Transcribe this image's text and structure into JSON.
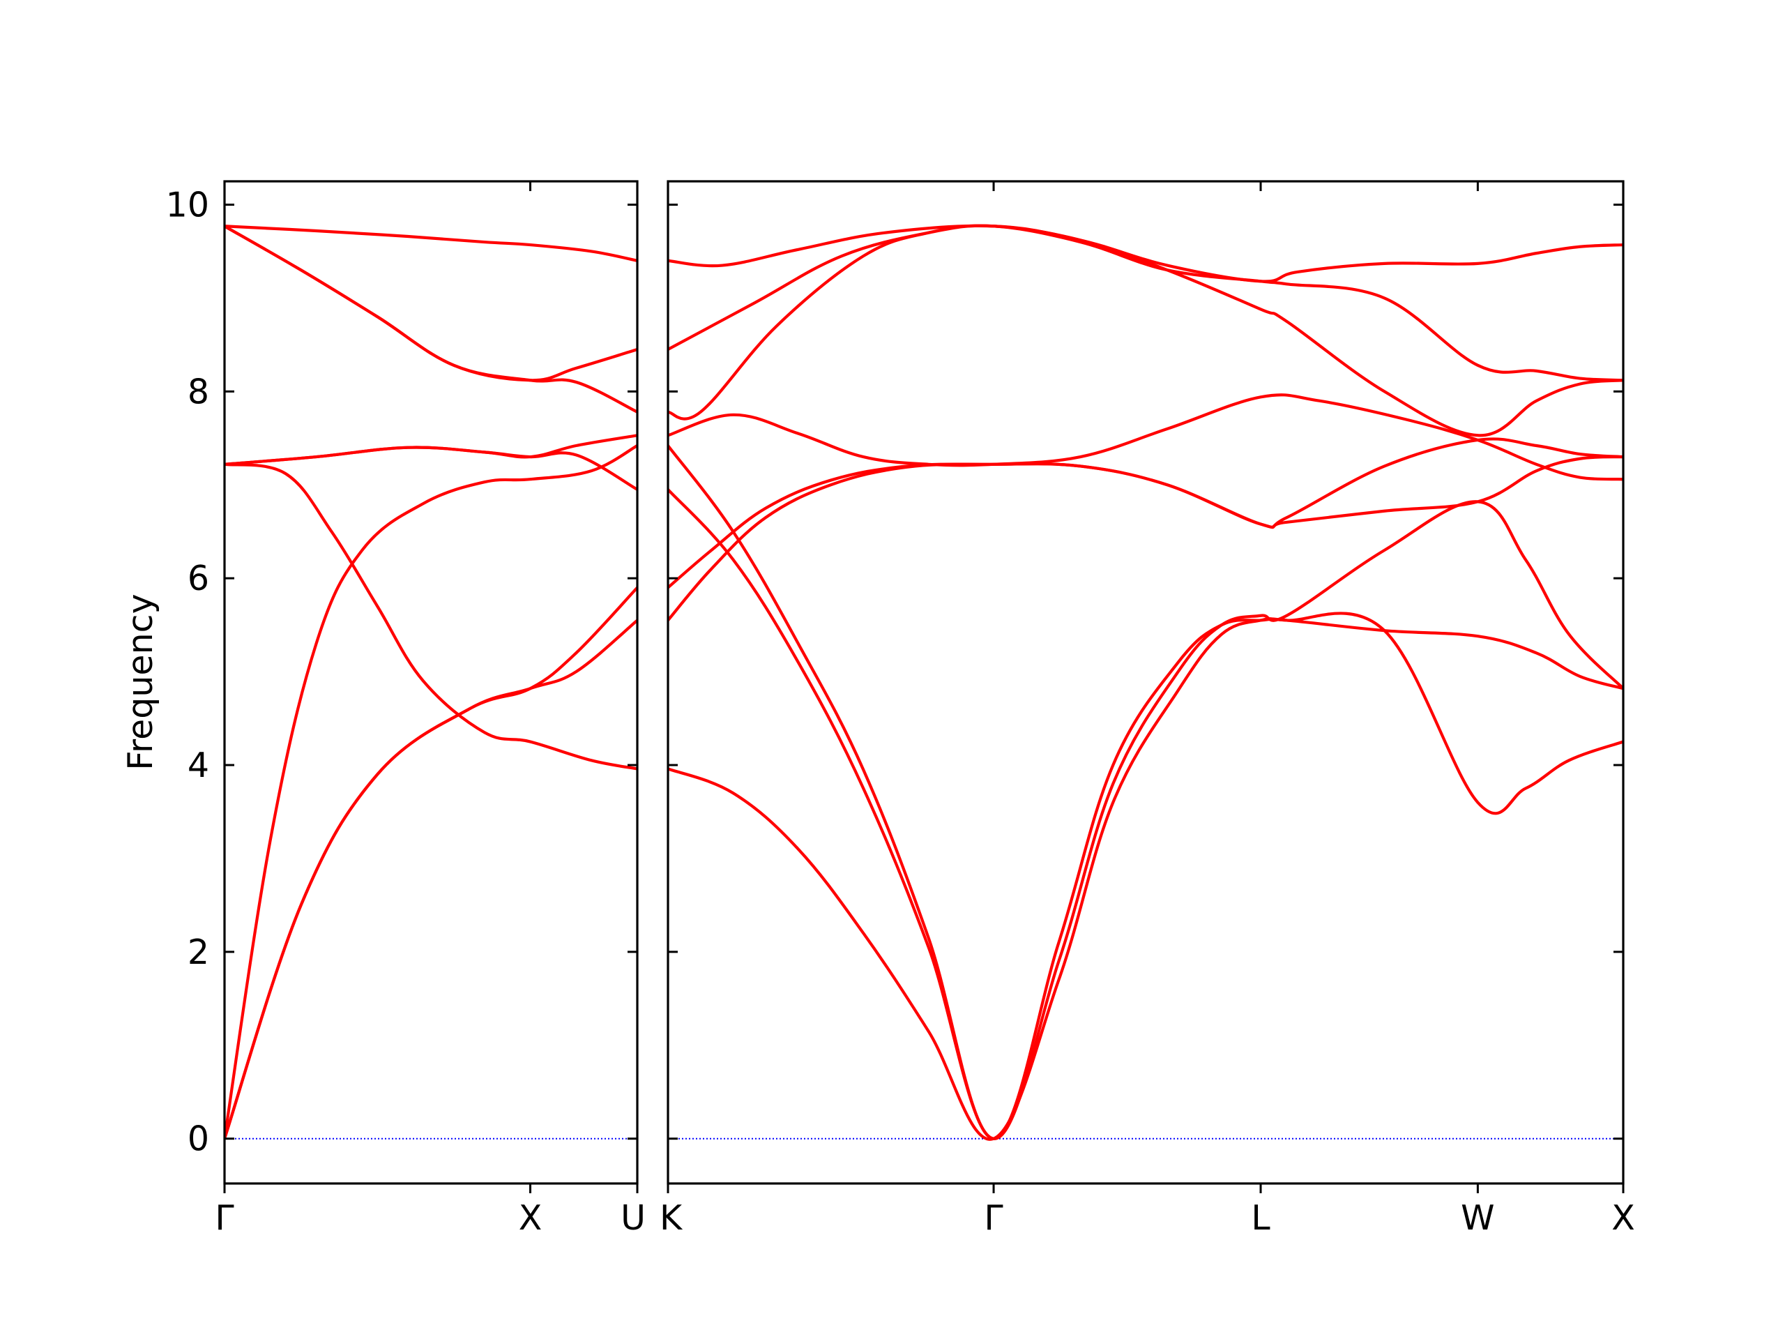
{
  "chart_data": {
    "type": "line",
    "title": "",
    "ylabel": "Frequency",
    "xlabel": "",
    "ylim": [
      -0.48,
      10.25
    ],
    "y_ticks": [
      0,
      2,
      4,
      6,
      8,
      10
    ],
    "colors": {
      "bands": "#ff0000",
      "zero_line": "#0000ff",
      "frame": "#000000"
    },
    "panels": [
      {
        "name": "Γ–X–U",
        "x_range": [
          0,
          1.35
        ],
        "high_symmetry_points": [
          {
            "label": "Γ",
            "x": 0
          },
          {
            "label": "X",
            "x": 1.0
          },
          {
            "label": "U",
            "x": 1.35
          }
        ],
        "bands": [
          {
            "points": [
              [
                0,
                0
              ],
              [
                0.25,
                2.5
              ],
              [
                0.5,
                3.9
              ],
              [
                0.8,
                4.6
              ],
              [
                1.0,
                4.82
              ],
              [
                1.15,
                5.0
              ],
              [
                1.35,
                5.55
              ]
            ]
          },
          {
            "points": [
              [
                0,
                0
              ],
              [
                0.25,
                2.5
              ],
              [
                0.5,
                3.9
              ],
              [
                0.8,
                4.6
              ],
              [
                1.0,
                4.82
              ],
              [
                1.15,
                5.2
              ],
              [
                1.35,
                5.9
              ]
            ]
          },
          {
            "points": [
              [
                0,
                0
              ],
              [
                0.15,
                3.2
              ],
              [
                0.3,
                5.3
              ],
              [
                0.45,
                6.3
              ],
              [
                0.65,
                6.8
              ],
              [
                0.85,
                7.03
              ],
              [
                1.0,
                7.06
              ],
              [
                1.2,
                7.15
              ],
              [
                1.35,
                7.42
              ]
            ]
          },
          {
            "points": [
              [
                0,
                7.22
              ],
              [
                0.2,
                7.12
              ],
              [
                0.35,
                6.5
              ],
              [
                0.5,
                5.7
              ],
              [
                0.65,
                4.9
              ],
              [
                0.85,
                4.35
              ],
              [
                1.0,
                4.25
              ],
              [
                1.2,
                4.05
              ],
              [
                1.35,
                3.96
              ]
            ]
          },
          {
            "points": [
              [
                0,
                7.22
              ],
              [
                0.3,
                7.3
              ],
              [
                0.6,
                7.4
              ],
              [
                0.85,
                7.35
              ],
              [
                1.0,
                7.3
              ],
              [
                1.15,
                7.32
              ],
              [
                1.35,
                6.95
              ]
            ]
          },
          {
            "points": [
              [
                0,
                7.22
              ],
              [
                0.3,
                7.3
              ],
              [
                0.6,
                7.4
              ],
              [
                0.85,
                7.35
              ],
              [
                1.0,
                7.3
              ],
              [
                1.15,
                7.42
              ],
              [
                1.35,
                7.53
              ]
            ]
          },
          {
            "points": [
              [
                0,
                9.77
              ],
              [
                0.25,
                9.3
              ],
              [
                0.5,
                8.8
              ],
              [
                0.75,
                8.28
              ],
              [
                1.0,
                8.12
              ],
              [
                1.15,
                8.1
              ],
              [
                1.35,
                7.78
              ]
            ]
          },
          {
            "points": [
              [
                0,
                9.77
              ],
              [
                0.25,
                9.3
              ],
              [
                0.5,
                8.8
              ],
              [
                0.75,
                8.28
              ],
              [
                1.0,
                8.12
              ],
              [
                1.15,
                8.25
              ],
              [
                1.35,
                8.45
              ]
            ]
          },
          {
            "points": [
              [
                0,
                9.77
              ],
              [
                0.3,
                9.72
              ],
              [
                0.6,
                9.66
              ],
              [
                0.85,
                9.6
              ],
              [
                1.0,
                9.57
              ],
              [
                1.2,
                9.5
              ],
              [
                1.35,
                9.4
              ]
            ]
          }
        ]
      },
      {
        "name": "K–Γ–L–W–X",
        "x_range": [
          0,
          4.4
        ],
        "high_symmetry_points": [
          {
            "label": "K",
            "x": 0
          },
          {
            "label": "Γ",
            "x": 1.5
          },
          {
            "label": "L",
            "x": 2.73
          },
          {
            "label": "W",
            "x": 3.73
          },
          {
            "label": "X",
            "x": 4.4
          }
        ],
        "bands": [
          {
            "points": [
              [
                0,
                3.96
              ],
              [
                0.3,
                3.7
              ],
              [
                0.6,
                3.1
              ],
              [
                0.9,
                2.2
              ],
              [
                1.2,
                1.15
              ],
              [
                1.5,
                0
              ],
              [
                1.8,
                1.7
              ],
              [
                2.05,
                3.6
              ],
              [
                2.35,
                4.8
              ],
              [
                2.55,
                5.4
              ],
              [
                2.73,
                5.55
              ],
              [
                2.85,
                5.55
              ],
              [
                3.3,
                5.44
              ],
              [
                3.73,
                5.38
              ],
              [
                4.0,
                5.2
              ],
              [
                4.2,
                4.95
              ],
              [
                4.4,
                4.82
              ]
            ]
          },
          {
            "points": [
              [
                0,
                6.95
              ],
              [
                0.3,
                6.2
              ],
              [
                0.6,
                5.1
              ],
              [
                0.9,
                3.75
              ],
              [
                1.2,
                2.05
              ],
              [
                1.5,
                0
              ],
              [
                1.8,
                1.9
              ],
              [
                2.05,
                3.8
              ],
              [
                2.35,
                5.0
              ],
              [
                2.55,
                5.5
              ],
              [
                2.73,
                5.6
              ],
              [
                2.85,
                5.6
              ],
              [
                3.3,
                6.3
              ],
              [
                3.73,
                6.82
              ],
              [
                3.95,
                6.2
              ],
              [
                4.15,
                5.4
              ],
              [
                4.4,
                4.82
              ]
            ]
          },
          {
            "points": [
              [
                0,
                7.42
              ],
              [
                0.3,
                6.5
              ],
              [
                0.6,
                5.3
              ],
              [
                0.9,
                3.95
              ],
              [
                1.2,
                2.15
              ],
              [
                1.5,
                0
              ],
              [
                1.8,
                2.1
              ],
              [
                2.05,
                4.0
              ],
              [
                2.35,
                5.1
              ],
              [
                2.55,
                5.5
              ],
              [
                2.73,
                5.55
              ],
              [
                2.85,
                5.55
              ],
              [
                3.3,
                5.44
              ],
              [
                3.73,
                3.6
              ],
              [
                3.95,
                3.75
              ],
              [
                4.15,
                4.05
              ],
              [
                4.4,
                4.25
              ]
            ]
          },
          {
            "points": [
              [
                0,
                5.55
              ],
              [
                0.2,
                6.1
              ],
              [
                0.45,
                6.65
              ],
              [
                0.75,
                7.0
              ],
              [
                1.1,
                7.19
              ],
              [
                1.5,
                7.22
              ],
              [
                1.9,
                7.2
              ],
              [
                2.3,
                7.0
              ],
              [
                2.73,
                6.58
              ],
              [
                2.85,
                6.6
              ],
              [
                3.3,
                6.72
              ],
              [
                3.73,
                6.82
              ],
              [
                4.0,
                7.15
              ],
              [
                4.2,
                7.28
              ],
              [
                4.4,
                7.3
              ]
            ]
          },
          {
            "points": [
              [
                0,
                5.9
              ],
              [
                0.2,
                6.3
              ],
              [
                0.45,
                6.75
              ],
              [
                0.75,
                7.05
              ],
              [
                1.1,
                7.2
              ],
              [
                1.5,
                7.22
              ],
              [
                1.9,
                7.2
              ],
              [
                2.3,
                7.0
              ],
              [
                2.73,
                6.58
              ],
              [
                2.85,
                6.65
              ],
              [
                3.3,
                7.2
              ],
              [
                3.73,
                7.48
              ],
              [
                4.0,
                7.42
              ],
              [
                4.2,
                7.33
              ],
              [
                4.4,
                7.3
              ]
            ]
          },
          {
            "points": [
              [
                0,
                7.53
              ],
              [
                0.3,
                7.75
              ],
              [
                0.6,
                7.55
              ],
              [
                0.9,
                7.3
              ],
              [
                1.2,
                7.22
              ],
              [
                1.5,
                7.22
              ],
              [
                1.9,
                7.3
              ],
              [
                2.3,
                7.6
              ],
              [
                2.73,
                7.94
              ],
              [
                3.0,
                7.9
              ],
              [
                3.4,
                7.7
              ],
              [
                3.73,
                7.48
              ],
              [
                4.0,
                7.22
              ],
              [
                4.2,
                7.08
              ],
              [
                4.4,
                7.06
              ]
            ]
          },
          {
            "points": [
              [
                0,
                7.78
              ],
              [
                0.15,
                7.78
              ],
              [
                0.5,
                8.7
              ],
              [
                0.9,
                9.45
              ],
              [
                1.2,
                9.7
              ],
              [
                1.5,
                9.77
              ],
              [
                1.9,
                9.6
              ],
              [
                2.3,
                9.3
              ],
              [
                2.73,
                9.18
              ],
              [
                2.85,
                9.15
              ],
              [
                3.3,
                9.0
              ],
              [
                3.73,
                8.28
              ],
              [
                4.0,
                8.22
              ],
              [
                4.2,
                8.14
              ],
              [
                4.4,
                8.12
              ]
            ]
          },
          {
            "points": [
              [
                0,
                8.45
              ],
              [
                0.4,
                8.95
              ],
              [
                0.8,
                9.45
              ],
              [
                1.2,
                9.7
              ],
              [
                1.5,
                9.77
              ],
              [
                1.9,
                9.62
              ],
              [
                2.3,
                9.3
              ],
              [
                2.73,
                8.88
              ],
              [
                2.85,
                8.75
              ],
              [
                3.3,
                8.0
              ],
              [
                3.73,
                7.53
              ],
              [
                4.0,
                7.9
              ],
              [
                4.2,
                8.08
              ],
              [
                4.4,
                8.12
              ]
            ]
          },
          {
            "points": [
              [
                0,
                9.4
              ],
              [
                0.25,
                9.35
              ],
              [
                0.6,
                9.52
              ],
              [
                1.0,
                9.7
              ],
              [
                1.5,
                9.77
              ],
              [
                1.9,
                9.62
              ],
              [
                2.3,
                9.35
              ],
              [
                2.73,
                9.18
              ],
              [
                2.9,
                9.28
              ],
              [
                3.3,
                9.37
              ],
              [
                3.73,
                9.37
              ],
              [
                4.0,
                9.48
              ],
              [
                4.2,
                9.55
              ],
              [
                4.4,
                9.57
              ]
            ]
          }
        ]
      }
    ]
  }
}
